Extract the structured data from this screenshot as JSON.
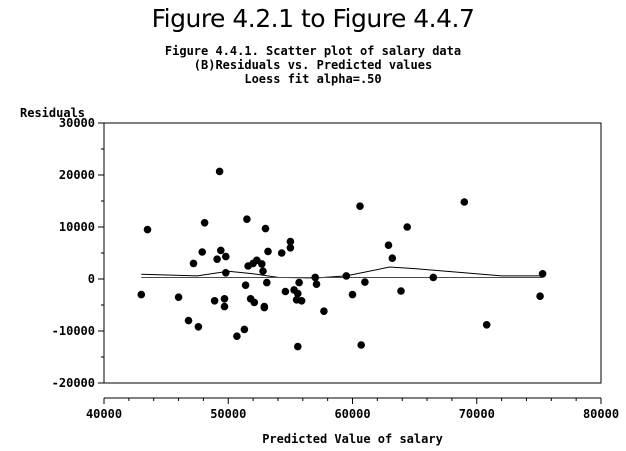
{
  "page": {
    "heading": "Figure 4.2.1 to Figure 4.4.7",
    "subtitle_lines": [
      "Figure 4.4.1. Scatter plot of salary data",
      "(B)Residuals vs. Predicted values",
      "Loess fit alpha=.50"
    ]
  },
  "colors": {
    "points": "#000000",
    "loess": "#000000",
    "zero_line": "#ff0000",
    "axes": "#000000"
  },
  "chart_data": {
    "type": "scatter",
    "title": "Figure 4.4.1. Scatter plot of salary data",
    "xlabel": "Predicted Value of salary",
    "ylabel": "Residuals",
    "xlim": [
      40000,
      80000
    ],
    "ylim": [
      -20000,
      30000
    ],
    "xticks": [
      40000,
      50000,
      60000,
      70000,
      80000
    ],
    "yticks": [
      -20000,
      -10000,
      0,
      10000,
      20000,
      30000
    ],
    "tick_labels_x": [
      "40000",
      "50000",
      "60000",
      "70000",
      "80000"
    ],
    "tick_labels_y": [
      "-20000",
      "-10000",
      "0",
      "10000",
      "20000",
      "30000"
    ],
    "grid": false,
    "legend": "none",
    "series": [
      {
        "kind": "points",
        "points": [
          [
            43000,
            -3000
          ],
          [
            43500,
            9500
          ],
          [
            46000,
            -3500
          ],
          [
            46800,
            -8000
          ],
          [
            47200,
            3000
          ],
          [
            47600,
            -9200
          ],
          [
            47900,
            5200
          ],
          [
            48100,
            10800
          ],
          [
            48900,
            -4200
          ],
          [
            49100,
            3800
          ],
          [
            49300,
            20700
          ],
          [
            49400,
            5500
          ],
          [
            49700,
            -3800
          ],
          [
            49700,
            -5300
          ],
          [
            49800,
            4300
          ],
          [
            49800,
            1200
          ],
          [
            50700,
            -11000
          ],
          [
            51300,
            -9700
          ],
          [
            51400,
            -1200
          ],
          [
            51500,
            11500
          ],
          [
            51600,
            2500
          ],
          [
            51800,
            -3800
          ],
          [
            52000,
            3000
          ],
          [
            52100,
            -4500
          ],
          [
            52300,
            3600
          ],
          [
            52700,
            2900
          ],
          [
            52800,
            1500
          ],
          [
            52900,
            -5300
          ],
          [
            52900,
            -5500
          ],
          [
            53000,
            9700
          ],
          [
            53100,
            -700
          ],
          [
            53200,
            5300
          ],
          [
            54300,
            5000
          ],
          [
            54600,
            -2400
          ],
          [
            55000,
            7200
          ],
          [
            55000,
            6000
          ],
          [
            55300,
            -2100
          ],
          [
            55500,
            -4000
          ],
          [
            55600,
            -2800
          ],
          [
            55600,
            -13000
          ],
          [
            55700,
            -700
          ],
          [
            55900,
            -4200
          ],
          [
            57000,
            300
          ],
          [
            57100,
            -1000
          ],
          [
            57700,
            -6200
          ],
          [
            59500,
            600
          ],
          [
            60000,
            -3000
          ],
          [
            60600,
            14000
          ],
          [
            60700,
            -12700
          ],
          [
            61000,
            -600
          ],
          [
            62900,
            6500
          ],
          [
            63200,
            4000
          ],
          [
            63900,
            -2300
          ],
          [
            64400,
            10000
          ],
          [
            66500,
            300
          ],
          [
            69000,
            14800
          ],
          [
            70800,
            -8800
          ],
          [
            75100,
            -3300
          ],
          [
            75300,
            1000
          ]
        ]
      },
      {
        "kind": "loess",
        "points": [
          [
            43000,
            900
          ],
          [
            47500,
            600
          ],
          [
            50000,
            1500
          ],
          [
            52000,
            1000
          ],
          [
            54000,
            300
          ],
          [
            57000,
            200
          ],
          [
            59500,
            600
          ],
          [
            63000,
            2300
          ],
          [
            65000,
            2000
          ],
          [
            69000,
            1200
          ],
          [
            72000,
            600
          ],
          [
            75300,
            600
          ]
        ]
      },
      {
        "kind": "reference",
        "points": [
          [
            43000,
            300
          ],
          [
            75300,
            300
          ]
        ]
      }
    ]
  }
}
